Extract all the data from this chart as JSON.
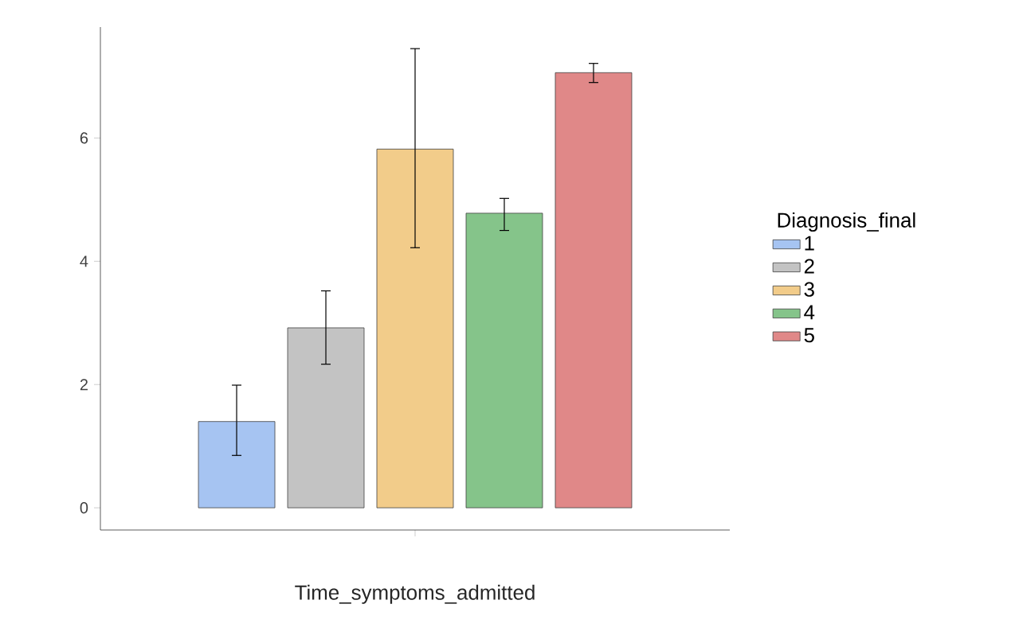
{
  "chart_data": {
    "type": "bar",
    "xlabel": "Time_symptoms_admitted",
    "categories": [
      null
    ],
    "series": [
      {
        "name": "1",
        "color": "#a6c4f2",
        "values": [
          1.4
        ],
        "errors": [
          [
            0.85,
            1.99
          ]
        ]
      },
      {
        "name": "2",
        "color": "#c3c3c3",
        "values": [
          2.92
        ],
        "errors": [
          [
            2.33,
            3.52
          ]
        ]
      },
      {
        "name": "3",
        "color": "#f2cc8a",
        "values": [
          5.82
        ],
        "errors": [
          [
            4.22,
            7.45
          ]
        ]
      },
      {
        "name": "4",
        "color": "#85c48a",
        "values": [
          4.78
        ],
        "errors": [
          [
            4.5,
            5.02
          ]
        ]
      },
      {
        "name": "5",
        "color": "#e08888",
        "values": [
          7.06
        ],
        "errors": [
          [
            6.9,
            7.21
          ]
        ]
      }
    ],
    "ylim": [
      -0.36,
      7.8
    ],
    "yticks": [
      0,
      2,
      4,
      6
    ],
    "legend": "right",
    "legend_title": "Diagnosis_final"
  }
}
